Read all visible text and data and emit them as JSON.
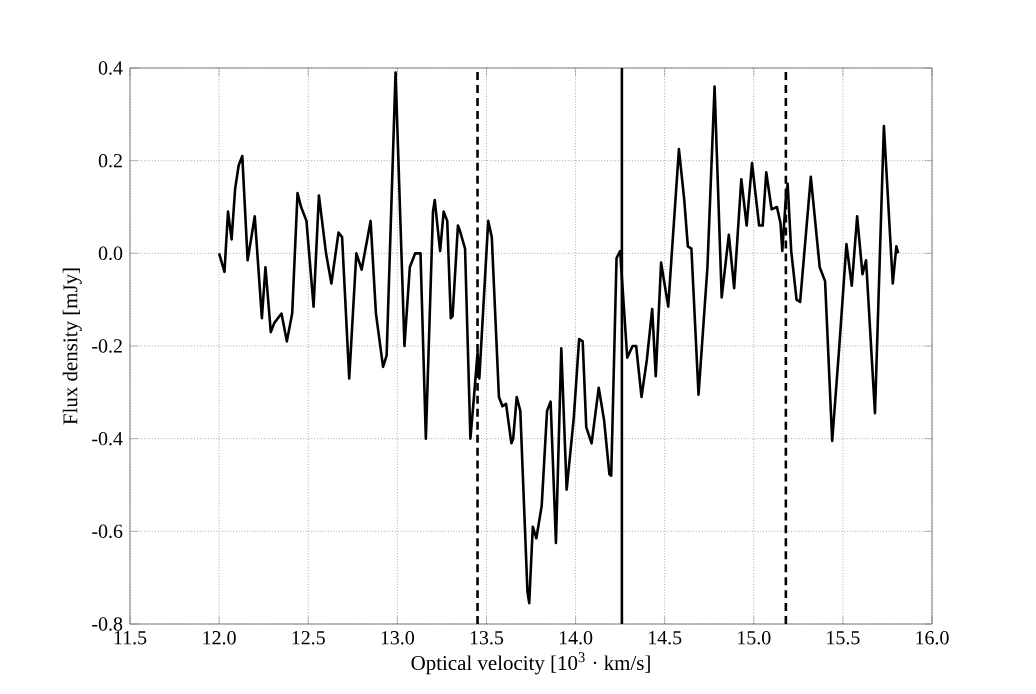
{
  "chart_data": {
    "type": "line",
    "xlabel": "Optical velocity [10$^{3}$ · km/s]",
    "ylabel": "Flux density [mJy]",
    "xlim": [
      11.5,
      16.0
    ],
    "ylim": [
      -0.8,
      0.4
    ],
    "xticks": [
      {
        "value": 11.5,
        "label": "11.5"
      },
      {
        "value": 12.0,
        "label": "12.0"
      },
      {
        "value": 12.5,
        "label": "12.5"
      },
      {
        "value": 13.0,
        "label": "13.0"
      },
      {
        "value": 13.5,
        "label": "13.5"
      },
      {
        "value": 14.0,
        "label": "14.0"
      },
      {
        "value": 14.5,
        "label": "14.5"
      },
      {
        "value": 15.0,
        "label": "15.0"
      },
      {
        "value": 15.5,
        "label": "15.5"
      },
      {
        "value": 16.0,
        "label": "16.0"
      }
    ],
    "yticks": [
      {
        "value": -0.8,
        "label": "-0.8"
      },
      {
        "value": -0.6,
        "label": "-0.6"
      },
      {
        "value": -0.4,
        "label": "-0.4"
      },
      {
        "value": -0.2,
        "label": "-0.2"
      },
      {
        "value": 0,
        "label": "0.0"
      },
      {
        "value": 0.2,
        "label": "0.2"
      },
      {
        "value": 0.4,
        "label": "0.4"
      }
    ],
    "grid": true,
    "line_style": "solid",
    "ref_lines": [
      {
        "axis": "x",
        "value": 13.45,
        "line_style": "dashed",
        "color": "#000000"
      },
      {
        "axis": "x",
        "value": 14.26,
        "line_style": "solid",
        "color": "#000000"
      },
      {
        "axis": "x",
        "value": 15.18,
        "line_style": "dashed",
        "color": "#000000"
      }
    ],
    "series": [
      {
        "color": "#000000",
        "x": [
          12.0,
          12.03,
          12.05,
          12.07,
          12.09,
          12.11,
          12.13,
          12.16,
          12.2,
          12.24,
          12.26,
          12.29,
          12.31,
          12.35,
          12.38,
          12.41,
          12.44,
          12.46,
          12.49,
          12.53,
          12.56,
          12.6,
          12.63,
          12.67,
          12.69,
          12.73,
          12.77,
          12.8,
          12.85,
          12.88,
          12.92,
          12.94,
          12.99,
          13.04,
          13.07,
          13.1,
          13.13,
          13.16,
          13.2,
          13.21,
          13.24,
          13.26,
          13.28,
          13.3,
          13.31,
          13.34,
          13.35,
          13.38,
          13.41,
          13.43,
          13.45,
          13.46,
          13.51,
          13.53,
          13.57,
          13.59,
          13.61,
          13.64,
          13.65,
          13.67,
          13.69,
          13.73,
          13.74,
          13.76,
          13.78,
          13.81,
          13.84,
          13.86,
          13.89,
          13.92,
          13.95,
          13.99,
          14.02,
          14.04,
          14.06,
          14.09,
          14.13,
          14.16,
          14.19,
          14.2,
          14.23,
          14.25,
          14.29,
          14.32,
          14.34,
          14.37,
          14.4,
          14.43,
          14.45,
          14.48,
          14.52,
          14.54,
          14.58,
          14.61,
          14.63,
          14.65,
          14.69,
          14.74,
          14.78,
          14.82,
          14.86,
          14.89,
          14.93,
          14.96,
          14.99,
          15.03,
          15.05,
          15.07,
          15.1,
          15.13,
          15.15,
          15.16,
          15.18,
          15.19,
          15.21,
          15.24,
          15.26,
          15.32,
          15.37,
          15.4,
          15.44,
          15.48,
          15.52,
          15.55,
          15.58,
          15.61,
          15.63,
          15.68,
          15.73,
          15.78,
          15.8,
          15.81
        ],
        "values": [
          0.0,
          -0.04,
          0.09,
          0.03,
          0.14,
          0.19,
          0.21,
          -0.015,
          0.08,
          -0.14,
          -0.03,
          -0.17,
          -0.15,
          -0.13,
          -0.19,
          -0.13,
          0.13,
          0.1,
          0.07,
          -0.115,
          0.125,
          0.0,
          -0.065,
          0.045,
          0.035,
          -0.27,
          0.0,
          -0.035,
          0.07,
          -0.13,
          -0.245,
          -0.22,
          0.39,
          -0.2,
          -0.03,
          0.0,
          0.0,
          -0.4,
          0.09,
          0.115,
          0.005,
          0.09,
          0.07,
          -0.14,
          -0.135,
          0.06,
          0.05,
          0.01,
          -0.4,
          -0.31,
          -0.215,
          -0.27,
          0.07,
          0.035,
          -0.31,
          -0.33,
          -0.325,
          -0.41,
          -0.4,
          -0.31,
          -0.34,
          -0.73,
          -0.755,
          -0.59,
          -0.615,
          -0.545,
          -0.34,
          -0.32,
          -0.625,
          -0.205,
          -0.51,
          -0.355,
          -0.185,
          -0.19,
          -0.375,
          -0.41,
          -0.29,
          -0.36,
          -0.477,
          -0.48,
          -0.01,
          0.005,
          -0.225,
          -0.2,
          -0.2,
          -0.31,
          -0.23,
          -0.12,
          -0.265,
          -0.02,
          -0.115,
          0.0,
          0.225,
          0.115,
          0.015,
          0.01,
          -0.305,
          -0.03,
          0.36,
          -0.095,
          0.04,
          -0.075,
          0.16,
          0.06,
          0.195,
          0.06,
          0.06,
          0.175,
          0.095,
          0.1,
          0.065,
          0.005,
          0.12,
          0.15,
          0.005,
          -0.1,
          -0.105,
          0.165,
          -0.03,
          -0.06,
          -0.405,
          -0.2,
          0.02,
          -0.07,
          0.08,
          -0.045,
          -0.015,
          -0.345,
          0.275,
          -0.065,
          0.015,
          0.0
        ]
      }
    ]
  }
}
